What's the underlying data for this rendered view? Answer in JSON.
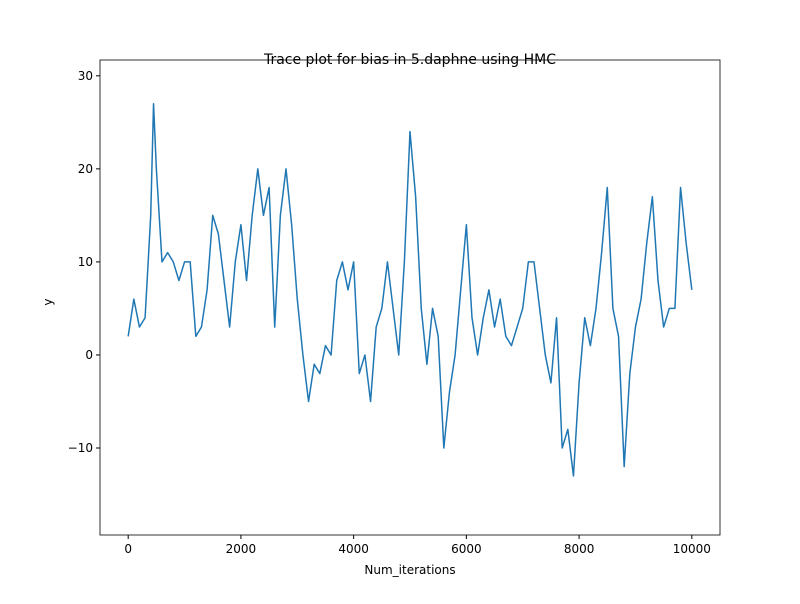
{
  "chart_data": {
    "type": "line",
    "title": "Trace plot for bias in 5.daphne using HMC",
    "x_label": "Num_iterations",
    "y_label": "y",
    "x": [
      0,
      100,
      200,
      300,
      400,
      450,
      500,
      600,
      700,
      800,
      900,
      1000,
      1100,
      1200,
      1300,
      1400,
      1500,
      1600,
      1700,
      1800,
      1900,
      2000,
      2100,
      2200,
      2300,
      2400,
      2500,
      2600,
      2700,
      2800,
      2900,
      3000,
      3100,
      3200,
      3300,
      3400,
      3500,
      3600,
      3700,
      3800,
      3900,
      4000,
      4100,
      4200,
      4300,
      4400,
      4500,
      4600,
      4700,
      4800,
      4900,
      5000,
      5100,
      5200,
      5300,
      5400,
      5500,
      5600,
      5700,
      5800,
      5900,
      6000,
      6100,
      6200,
      6300,
      6400,
      6500,
      6600,
      6700,
      6800,
      6900,
      7000,
      7100,
      7200,
      7300,
      7400,
      7500,
      7600,
      7700,
      7800,
      7900,
      8000,
      8100,
      8200,
      8300,
      8400,
      8500,
      8600,
      8700,
      8800,
      8900,
      9000,
      9100,
      9200,
      9300,
      9400,
      9500,
      9600,
      9700,
      9800,
      9900,
      10000
    ],
    "series": [
      {
        "name": "bias",
        "color": "#1f77b4",
        "values": [
          2,
          6,
          3,
          4,
          15,
          27,
          20,
          10,
          11,
          10,
          8,
          10,
          10,
          2,
          3,
          7,
          15,
          13,
          8,
          3,
          10,
          14,
          8,
          15,
          20,
          15,
          18,
          3,
          15,
          20,
          14,
          6,
          0,
          -5,
          -1,
          -2,
          1,
          0,
          8,
          10,
          7,
          10,
          -2,
          0,
          -5,
          3,
          5,
          10,
          5,
          0,
          10,
          24,
          17,
          5,
          -1,
          5,
          2,
          -10,
          -4,
          0,
          7,
          14,
          4,
          0,
          4,
          7,
          3,
          6,
          2,
          1,
          3,
          5,
          10,
          10,
          5,
          0,
          -3,
          4,
          -10,
          -8,
          -13,
          -3,
          4,
          1,
          5,
          11,
          18,
          5,
          2,
          -12,
          -2,
          3,
          6,
          12,
          17,
          8,
          3,
          5,
          5,
          18,
          12,
          7
        ]
      }
    ],
    "xlim": [
      -500,
      10500
    ],
    "ylim": [
      -19.35,
      31.7
    ],
    "xticks": [
      0,
      2000,
      4000,
      6000,
      8000,
      10000
    ],
    "yticks": [
      {
        "value": -10,
        "label": "−10"
      },
      0,
      10,
      20,
      30
    ]
  }
}
